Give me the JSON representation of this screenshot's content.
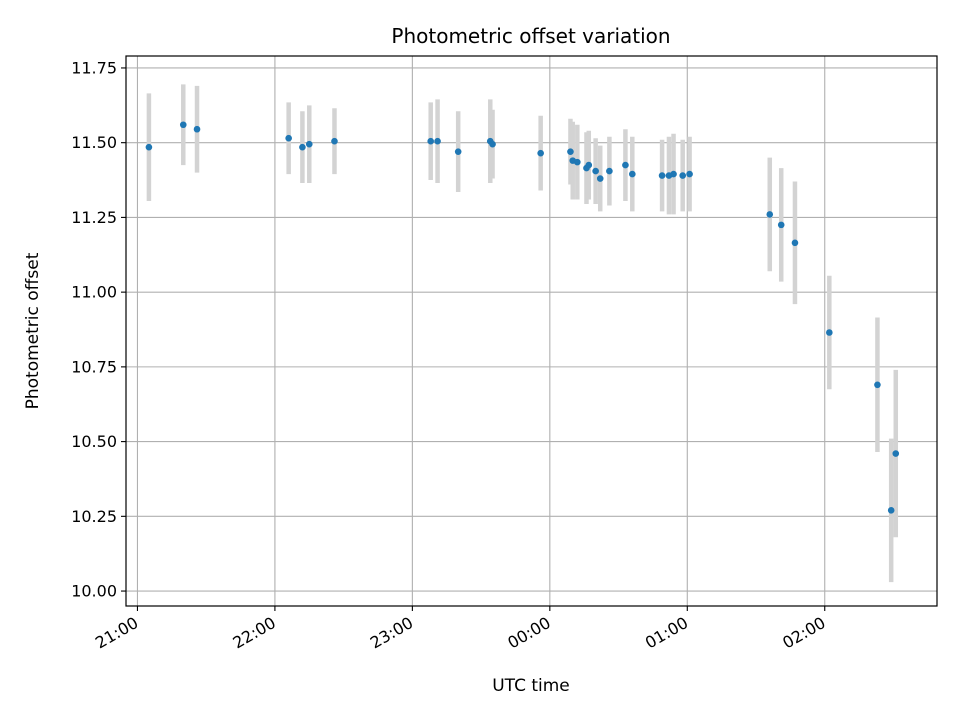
{
  "chart_data": {
    "type": "scatter",
    "title": "Photometric offset variation",
    "xlabel": "UTC time",
    "ylabel": "Photometric offset",
    "x_unit": "UTC time (hh:mm), window 20:55 to 02:49 across midnight",
    "xlim": [
      "20:55",
      "02:49"
    ],
    "ylim": [
      9.95,
      11.79
    ],
    "xticks": [
      "21:00",
      "22:00",
      "23:00",
      "00:00",
      "01:00",
      "02:00"
    ],
    "yticks": [
      "10.00",
      "10.25",
      "10.50",
      "10.75",
      "11.00",
      "11.25",
      "11.50",
      "11.75"
    ],
    "grid": true,
    "marker_color": "#1f77b4",
    "errorbar_color": "#d3d3d3",
    "points": [
      {
        "x": "21:05",
        "y": 11.485,
        "err": 0.18
      },
      {
        "x": "21:20",
        "y": 11.56,
        "err": 0.135
      },
      {
        "x": "21:26",
        "y": 11.545,
        "err": 0.145
      },
      {
        "x": "22:06",
        "y": 11.515,
        "err": 0.12
      },
      {
        "x": "22:12",
        "y": 11.485,
        "err": 0.12
      },
      {
        "x": "22:15",
        "y": 11.495,
        "err": 0.13
      },
      {
        "x": "22:26",
        "y": 11.505,
        "err": 0.11
      },
      {
        "x": "23:08",
        "y": 11.505,
        "err": 0.13
      },
      {
        "x": "23:11",
        "y": 11.505,
        "err": 0.14
      },
      {
        "x": "23:20",
        "y": 11.47,
        "err": 0.135
      },
      {
        "x": "23:34",
        "y": 11.505,
        "err": 0.14
      },
      {
        "x": "23:35",
        "y": 11.495,
        "err": 0.115
      },
      {
        "x": "23:56",
        "y": 11.465,
        "err": 0.125
      },
      {
        "x": "00:09",
        "y": 11.47,
        "err": 0.11
      },
      {
        "x": "00:10",
        "y": 11.44,
        "err": 0.13
      },
      {
        "x": "00:12",
        "y": 11.435,
        "err": 0.125
      },
      {
        "x": "00:16",
        "y": 11.415,
        "err": 0.12
      },
      {
        "x": "00:17",
        "y": 11.425,
        "err": 0.115
      },
      {
        "x": "00:20",
        "y": 11.405,
        "err": 0.11
      },
      {
        "x": "00:22",
        "y": 11.38,
        "err": 0.11
      },
      {
        "x": "00:26",
        "y": 11.405,
        "err": 0.115
      },
      {
        "x": "00:33",
        "y": 11.425,
        "err": 0.12
      },
      {
        "x": "00:36",
        "y": 11.395,
        "err": 0.125
      },
      {
        "x": "00:49",
        "y": 11.39,
        "err": 0.12
      },
      {
        "x": "00:52",
        "y": 11.39,
        "err": 0.13
      },
      {
        "x": "00:54",
        "y": 11.395,
        "err": 0.135
      },
      {
        "x": "00:58",
        "y": 11.39,
        "err": 0.12
      },
      {
        "x": "01:01",
        "y": 11.395,
        "err": 0.125
      },
      {
        "x": "01:36",
        "y": 11.26,
        "err": 0.19
      },
      {
        "x": "01:41",
        "y": 11.225,
        "err": 0.19
      },
      {
        "x": "01:47",
        "y": 11.165,
        "err": 0.205
      },
      {
        "x": "02:02",
        "y": 10.865,
        "err": 0.19
      },
      {
        "x": "02:23",
        "y": 10.69,
        "err": 0.225
      },
      {
        "x": "02:29",
        "y": 10.27,
        "err": 0.24
      },
      {
        "x": "02:31",
        "y": 10.46,
        "err": 0.28
      }
    ]
  }
}
